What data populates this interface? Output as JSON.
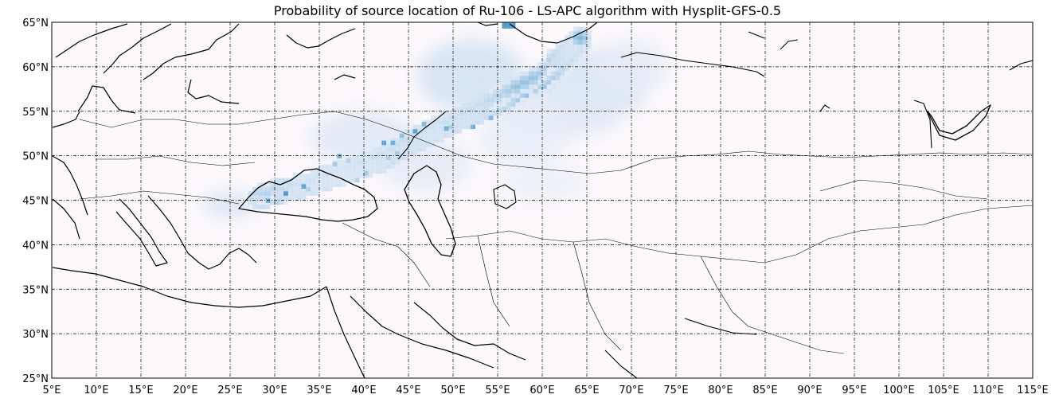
{
  "title": "Probability of source location of Ru-106 - LS-APC algorithm with Hysplit-GFS-0.5",
  "map": {
    "lon_range": [
      5,
      115
    ],
    "lat_range": [
      25,
      65
    ],
    "lon_ticks": [
      {
        "v": 5,
        "label": "5°E"
      },
      {
        "v": 10,
        "label": "10°E"
      },
      {
        "v": 15,
        "label": "15°E"
      },
      {
        "v": 20,
        "label": "20°E"
      },
      {
        "v": 25,
        "label": "25°E"
      },
      {
        "v": 30,
        "label": "30°E"
      },
      {
        "v": 35,
        "label": "35°E"
      },
      {
        "v": 40,
        "label": "40°E"
      },
      {
        "v": 45,
        "label": "45°E"
      },
      {
        "v": 50,
        "label": "50°E"
      },
      {
        "v": 55,
        "label": "55°E"
      },
      {
        "v": 60,
        "label": "60°E"
      },
      {
        "v": 65,
        "label": "65°E"
      },
      {
        "v": 70,
        "label": "70°E"
      },
      {
        "v": 75,
        "label": "75°E"
      },
      {
        "v": 80,
        "label": "80°E"
      },
      {
        "v": 85,
        "label": "85°E"
      },
      {
        "v": 90,
        "label": "90°E"
      },
      {
        "v": 95,
        "label": "95°E"
      },
      {
        "v": 100,
        "label": "100°E"
      },
      {
        "v": 105,
        "label": "105°E"
      },
      {
        "v": 110,
        "label": "110°E"
      },
      {
        "v": 115,
        "label": "115°E"
      }
    ],
    "lat_ticks": [
      {
        "v": 25,
        "label": "25°N"
      },
      {
        "v": 30,
        "label": "30°N"
      },
      {
        "v": 35,
        "label": "35°N"
      },
      {
        "v": 40,
        "label": "40°N"
      },
      {
        "v": 45,
        "label": "45°N"
      },
      {
        "v": 50,
        "label": "50°N"
      },
      {
        "v": 55,
        "label": "55°N"
      },
      {
        "v": 60,
        "label": "60°N"
      },
      {
        "v": 65,
        "label": "65°N"
      }
    ],
    "grid": true,
    "colormap": "blues",
    "background_color": "#fcf8fc",
    "probability_ridge": [
      {
        "lon": 28,
        "lat": 45.6,
        "p": 0.55
      },
      {
        "lon": 30,
        "lat": 46.2,
        "p": 0.65
      },
      {
        "lon": 32,
        "lat": 46.6,
        "p": 0.5
      },
      {
        "lon": 34,
        "lat": 47.2,
        "p": 0.45
      },
      {
        "lon": 36,
        "lat": 48.0,
        "p": 0.45
      },
      {
        "lon": 38,
        "lat": 48.6,
        "p": 0.4
      },
      {
        "lon": 40,
        "lat": 49.3,
        "p": 0.45
      },
      {
        "lon": 42,
        "lat": 50.0,
        "p": 0.45
      },
      {
        "lon": 44,
        "lat": 51.2,
        "p": 0.5
      },
      {
        "lon": 46,
        "lat": 52.3,
        "p": 0.5
      },
      {
        "lon": 48,
        "lat": 53.3,
        "p": 0.45
      },
      {
        "lon": 50,
        "lat": 54.2,
        "p": 0.5
      },
      {
        "lon": 52,
        "lat": 55.0,
        "p": 0.5
      },
      {
        "lon": 54,
        "lat": 56.0,
        "p": 0.55
      },
      {
        "lon": 56,
        "lat": 57.0,
        "p": 0.65
      },
      {
        "lon": 58,
        "lat": 58.2,
        "p": 0.85
      },
      {
        "lon": 60,
        "lat": 59.0,
        "p": 0.85
      },
      {
        "lon": 61,
        "lat": 60.0,
        "p": 0.7
      },
      {
        "lon": 62,
        "lat": 61.2,
        "p": 0.6
      },
      {
        "lon": 63,
        "lat": 62.4,
        "p": 0.5
      },
      {
        "lon": 64,
        "lat": 63.5,
        "p": 0.45
      },
      {
        "lon": 55.5,
        "lat": 64.7,
        "p": 0.6
      }
    ],
    "probability_cells": [
      {
        "lon": 37,
        "lat": 50.2,
        "p": 0.5
      },
      {
        "lon": 36.5,
        "lat": 49.3,
        "p": 0.35
      },
      {
        "lon": 38,
        "lat": 49.7,
        "p": 0.3
      },
      {
        "lon": 42,
        "lat": 51.7,
        "p": 0.55
      },
      {
        "lon": 43,
        "lat": 51.7,
        "p": 0.5
      },
      {
        "lon": 44,
        "lat": 52.5,
        "p": 0.4
      },
      {
        "lon": 45.5,
        "lat": 53.0,
        "p": 0.55
      },
      {
        "lon": 46.5,
        "lat": 53.8,
        "p": 0.45
      },
      {
        "lon": 49,
        "lat": 53.3,
        "p": 0.5
      },
      {
        "lon": 52,
        "lat": 53.5,
        "p": 0.5
      },
      {
        "lon": 54,
        "lat": 54.5,
        "p": 0.45
      },
      {
        "lon": 40,
        "lat": 48.3,
        "p": 0.35
      },
      {
        "lon": 39,
        "lat": 47.5,
        "p": 0.3
      },
      {
        "lon": 33,
        "lat": 46.8,
        "p": 0.55
      },
      {
        "lon": 31,
        "lat": 46.0,
        "p": 0.6
      },
      {
        "lon": 29,
        "lat": 45.2,
        "p": 0.5
      }
    ],
    "faint_regions": [
      {
        "lon": 52,
        "lat": 59,
        "rx": 6,
        "ry": 4,
        "p": 0.12
      },
      {
        "lon": 66,
        "lat": 58,
        "rx": 6,
        "ry": 4,
        "p": 0.1
      },
      {
        "lon": 62,
        "lat": 55,
        "rx": 7,
        "ry": 3,
        "p": 0.08
      },
      {
        "lon": 40,
        "lat": 52,
        "rx": 6,
        "ry": 3,
        "p": 0.08
      },
      {
        "lon": 47,
        "lat": 49,
        "rx": 5,
        "ry": 3,
        "p": 0.07
      },
      {
        "lon": 58,
        "lat": 52,
        "rx": 5,
        "ry": 3,
        "p": 0.06
      },
      {
        "lon": 25,
        "lat": 44.5,
        "rx": 3,
        "ry": 1.5,
        "p": 0.1
      },
      {
        "lon": 70,
        "lat": 60,
        "rx": 4,
        "ry": 3,
        "p": 0.07
      },
      {
        "lon": 60,
        "lat": 47,
        "rx": 5,
        "ry": 2,
        "p": 0.05
      }
    ]
  }
}
